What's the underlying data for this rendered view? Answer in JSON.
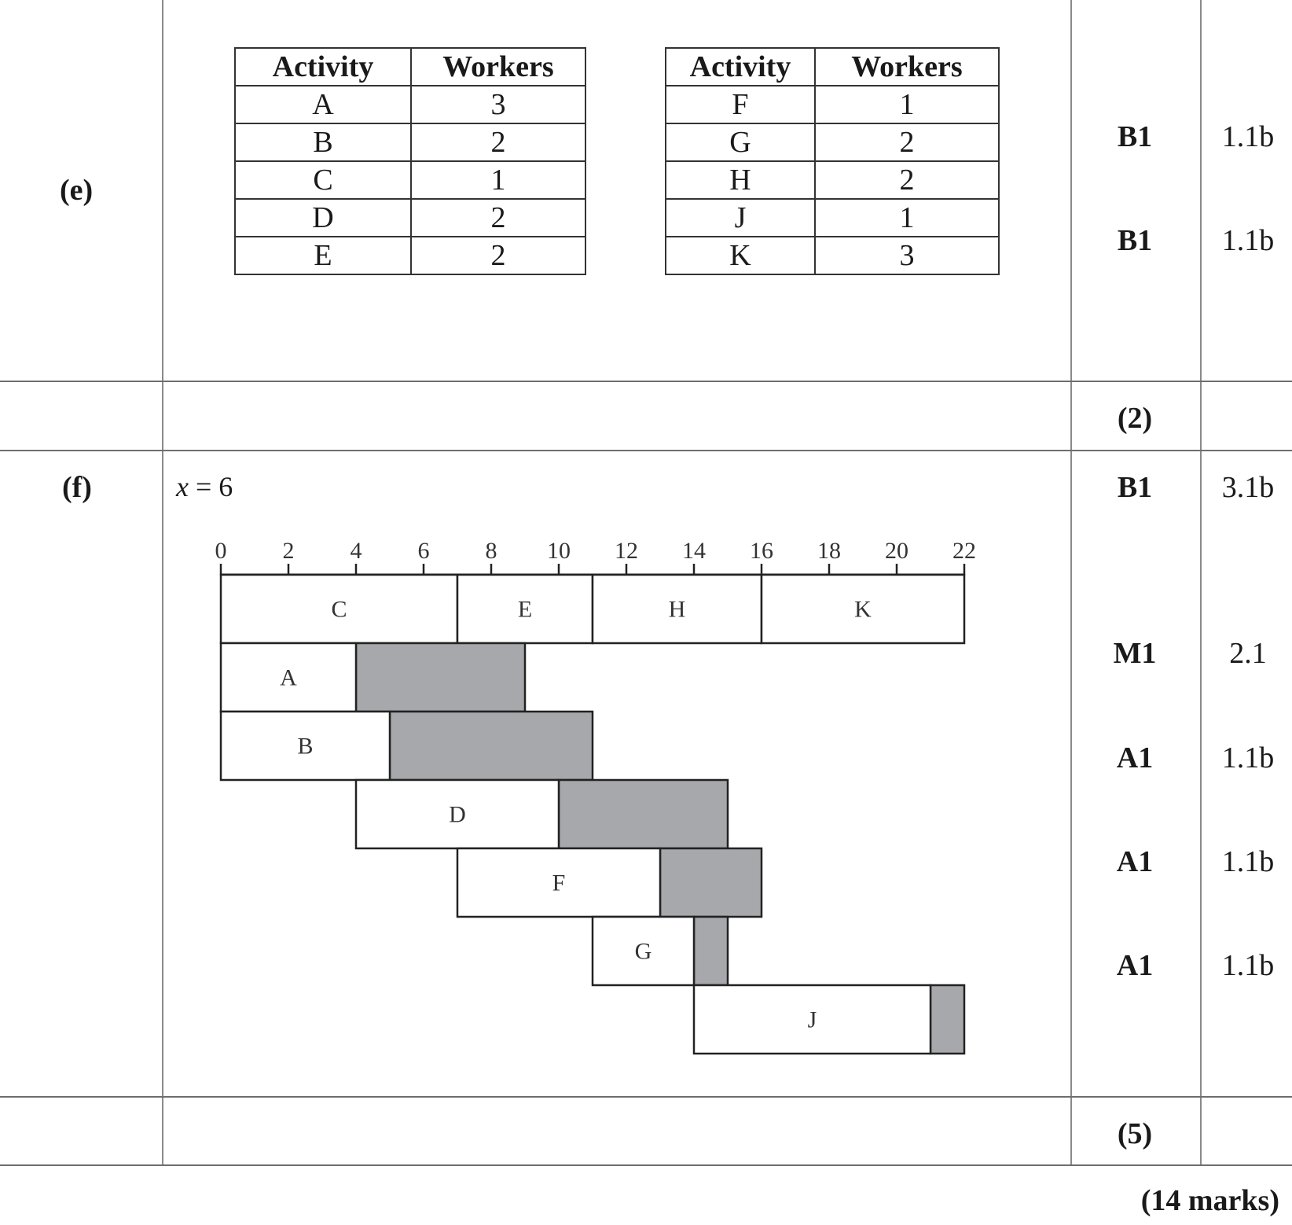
{
  "part_e": {
    "label": "(e)",
    "table1": {
      "headers": [
        "Activity",
        "Workers"
      ],
      "rows": [
        [
          "A",
          "3"
        ],
        [
          "B",
          "2"
        ],
        [
          "C",
          "1"
        ],
        [
          "D",
          "2"
        ],
        [
          "E",
          "2"
        ]
      ]
    },
    "table2": {
      "headers": [
        "Activity",
        "Workers"
      ],
      "rows": [
        [
          "F",
          "1"
        ],
        [
          "G",
          "2"
        ],
        [
          "H",
          "2"
        ],
        [
          "J",
          "1"
        ],
        [
          "K",
          "3"
        ]
      ]
    },
    "marks": [
      {
        "mark": "B1",
        "ao": "1.1b"
      },
      {
        "mark": "B1",
        "ao": "1.1b"
      }
    ],
    "subtotal": "(2)"
  },
  "part_f": {
    "label": "(f)",
    "answer_var": "x",
    "answer_rest": " = 6",
    "marks": [
      {
        "mark": "B1",
        "ao": "3.1b"
      },
      {
        "mark": "M1",
        "ao": "2.1"
      },
      {
        "mark": "A1",
        "ao": "1.1b"
      },
      {
        "mark": "A1",
        "ao": "1.1b"
      },
      {
        "mark": "A1",
        "ao": "1.1b"
      }
    ],
    "subtotal": "(5)"
  },
  "total": "(14 marks)",
  "chart_data": {
    "type": "gantt",
    "axis": {
      "min": 0,
      "max": 22,
      "ticks": [
        0,
        2,
        4,
        6,
        8,
        10,
        12,
        14,
        16,
        18,
        20,
        22
      ]
    },
    "colors": {
      "activity_fill": "#ffffff",
      "float_fill": "#a7a8ab",
      "border": "#222222"
    },
    "rows": [
      {
        "activities": [
          {
            "name": "C",
            "start": 0,
            "end": 7
          },
          {
            "name": "E",
            "start": 7,
            "end": 11
          },
          {
            "name": "H",
            "start": 11,
            "end": 16
          },
          {
            "name": "K",
            "start": 16,
            "end": 22
          }
        ]
      },
      {
        "activities": [
          {
            "name": "A",
            "start": 0,
            "end": 4
          }
        ],
        "float": [
          4,
          9
        ]
      },
      {
        "activities": [
          {
            "name": "B",
            "start": 0,
            "end": 5
          }
        ],
        "float": [
          5,
          11
        ]
      },
      {
        "activities": [
          {
            "name": "D",
            "start": 4,
            "end": 10
          }
        ],
        "float": [
          10,
          15
        ]
      },
      {
        "activities": [
          {
            "name": "F",
            "start": 7,
            "end": 13
          }
        ],
        "float": [
          13,
          16
        ]
      },
      {
        "activities": [
          {
            "name": "G",
            "start": 11,
            "end": 14
          }
        ],
        "float": [
          14,
          15
        ]
      },
      {
        "activities": [
          {
            "name": "J",
            "start": 14,
            "end": 21
          }
        ],
        "float": [
          21,
          22
        ]
      }
    ]
  }
}
